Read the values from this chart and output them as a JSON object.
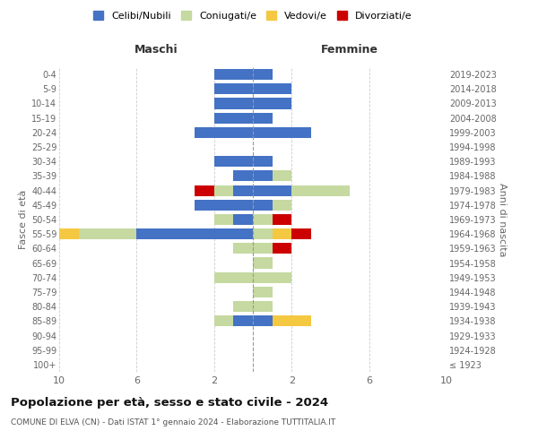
{
  "age_groups": [
    "100+",
    "95-99",
    "90-94",
    "85-89",
    "80-84",
    "75-79",
    "70-74",
    "65-69",
    "60-64",
    "55-59",
    "50-54",
    "45-49",
    "40-44",
    "35-39",
    "30-34",
    "25-29",
    "20-24",
    "15-19",
    "10-14",
    "5-9",
    "0-4"
  ],
  "birth_years": [
    "≤ 1923",
    "1924-1928",
    "1929-1933",
    "1934-1938",
    "1939-1943",
    "1944-1948",
    "1949-1953",
    "1954-1958",
    "1959-1963",
    "1964-1968",
    "1969-1973",
    "1974-1978",
    "1979-1983",
    "1984-1988",
    "1989-1993",
    "1994-1998",
    "1999-2003",
    "2004-2008",
    "2009-2013",
    "2014-2018",
    "2019-2023"
  ],
  "males": {
    "celibi": [
      0,
      0,
      0,
      1,
      0,
      0,
      0,
      0,
      0,
      6,
      1,
      3,
      1,
      1,
      2,
      0,
      3,
      2,
      2,
      2,
      2
    ],
    "coniugati": [
      0,
      0,
      0,
      1,
      1,
      0,
      2,
      0,
      1,
      3,
      1,
      0,
      1,
      0,
      0,
      0,
      0,
      0,
      0,
      0,
      0
    ],
    "vedovi": [
      0,
      0,
      0,
      0,
      0,
      0,
      0,
      0,
      0,
      1,
      0,
      0,
      0,
      0,
      0,
      0,
      0,
      0,
      0,
      0,
      0
    ],
    "divorziati": [
      0,
      0,
      0,
      0,
      0,
      0,
      0,
      0,
      0,
      0,
      0,
      0,
      1,
      0,
      0,
      0,
      0,
      0,
      0,
      0,
      0
    ]
  },
  "females": {
    "nubili": [
      0,
      0,
      0,
      1,
      0,
      0,
      0,
      0,
      0,
      0,
      0,
      1,
      2,
      1,
      1,
      0,
      3,
      1,
      2,
      2,
      1
    ],
    "coniugate": [
      0,
      0,
      0,
      0,
      1,
      1,
      2,
      1,
      1,
      1,
      1,
      1,
      3,
      1,
      0,
      0,
      0,
      0,
      0,
      0,
      0
    ],
    "vedove": [
      0,
      0,
      0,
      2,
      0,
      0,
      0,
      0,
      0,
      1,
      0,
      0,
      0,
      0,
      0,
      0,
      0,
      0,
      0,
      0,
      0
    ],
    "divorziate": [
      0,
      0,
      0,
      0,
      0,
      0,
      0,
      0,
      1,
      1,
      1,
      0,
      0,
      0,
      0,
      0,
      0,
      0,
      0,
      0,
      0
    ]
  },
  "color_celibi": "#4472c4",
  "color_coniugati": "#c5d9a0",
  "color_vedovi": "#f5c842",
  "color_divorziati": "#cc0000",
  "xlim": 10,
  "xlabel_left": "Maschi",
  "xlabel_right": "Femmine",
  "ylabel_left": "Fasce di età",
  "ylabel_right": "Anni di nascita",
  "title": "Popolazione per età, sesso e stato civile - 2024",
  "subtitle": "COMUNE DI ELVA (CN) - Dati ISTAT 1° gennaio 2024 - Elaborazione TUTTITALIA.IT",
  "legend_labels": [
    "Celibi/Nubili",
    "Coniugati/e",
    "Vedovi/e",
    "Divorziati/e"
  ],
  "bg_color": "#ffffff",
  "grid_color": "#cccccc"
}
